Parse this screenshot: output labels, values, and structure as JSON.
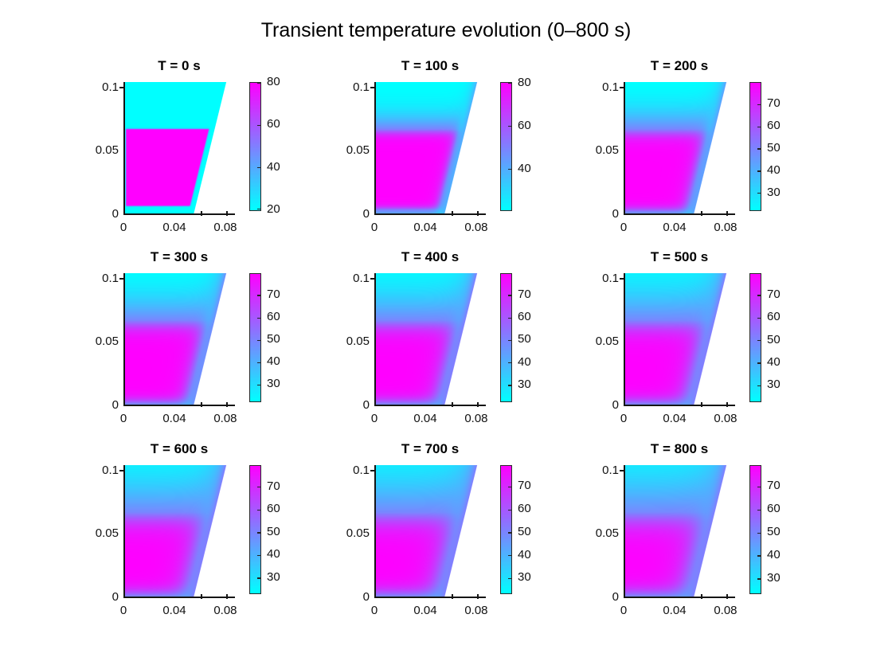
{
  "figure_title": "Transient temperature evolution (0–800 s)",
  "colors": {
    "background": "#FFFFFF",
    "text": "#111111",
    "cmap_low": "#00FFFF",
    "cmap_high": "#FF00FF",
    "colormap_name": "cool"
  },
  "axis": {
    "x_tick_labels": [
      "0",
      "0.04",
      "0.08"
    ],
    "y_tick_labels": [
      "0",
      "0.05",
      "0.1"
    ],
    "x_tick_values": [
      0,
      0.04,
      0.08
    ],
    "y_tick_values": [
      0,
      0.05,
      0.1
    ],
    "x_minor_tick_values": [
      0,
      0.02,
      0.04,
      0.06,
      0.08
    ],
    "xlim": [
      0,
      0.0863
    ],
    "ylim": [
      0,
      0.1044
    ]
  },
  "geometry": {
    "domain_polygon": [
      [
        0,
        0
      ],
      [
        0.054,
        0
      ],
      [
        0.0795,
        0.1044
      ],
      [
        0,
        0.1044
      ]
    ],
    "hot_region": {
      "x_min": 0.0008,
      "y_min": 0.006,
      "y_max": 0.067,
      "slant_margin": 0.0045,
      "temp_C": 80
    },
    "ambient_temp_C": 20
  },
  "chart_data": [
    {
      "type": "heatmap",
      "title": "T = 0 s",
      "time_s": 0,
      "colorbar": {
        "min": 20,
        "max": 80,
        "ticks": [
          20,
          40,
          60,
          80
        ]
      }
    },
    {
      "type": "heatmap",
      "title": "T = 100 s",
      "time_s": 100,
      "colorbar": {
        "min": 21,
        "max": 80.2,
        "ticks": [
          40,
          60,
          80
        ]
      }
    },
    {
      "type": "heatmap",
      "title": "T = 200 s",
      "time_s": 200,
      "colorbar": {
        "min": 22.3,
        "max": 79.8,
        "ticks": [
          30,
          40,
          50,
          60,
          70
        ]
      }
    },
    {
      "type": "heatmap",
      "title": "T = 300 s",
      "time_s": 300,
      "colorbar": {
        "min": 22.6,
        "max": 79.6,
        "ticks": [
          30,
          40,
          50,
          60,
          70
        ]
      }
    },
    {
      "type": "heatmap",
      "title": "T = 400 s",
      "time_s": 400,
      "colorbar": {
        "min": 22.9,
        "max": 79.5,
        "ticks": [
          30,
          40,
          50,
          60,
          70
        ]
      }
    },
    {
      "type": "heatmap",
      "title": "T = 500 s",
      "time_s": 500,
      "colorbar": {
        "min": 23.1,
        "max": 79.4,
        "ticks": [
          30,
          40,
          50,
          60,
          70
        ]
      }
    },
    {
      "type": "heatmap",
      "title": "T = 600 s",
      "time_s": 600,
      "colorbar": {
        "min": 23.3,
        "max": 79.3,
        "ticks": [
          30,
          40,
          50,
          60,
          70
        ]
      }
    },
    {
      "type": "heatmap",
      "title": "T = 700 s",
      "time_s": 700,
      "colorbar": {
        "min": 23.5,
        "max": 79.2,
        "ticks": [
          30,
          40,
          50,
          60,
          70
        ]
      }
    },
    {
      "type": "heatmap",
      "title": "T = 800 s",
      "time_s": 800,
      "colorbar": {
        "min": 23.7,
        "max": 79.1,
        "ticks": [
          30,
          40,
          50,
          60,
          70
        ]
      }
    }
  ]
}
